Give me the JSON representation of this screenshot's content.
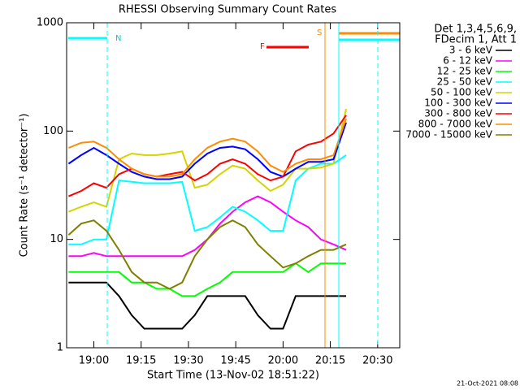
{
  "chart_data": {
    "type": "line",
    "title": "RHESSI Observing Summary Count Rates",
    "x_label": "Start Time (13-Nov-02 18:51:22)",
    "y_label": "Count Rate (s⁻¹ detector⁻¹)",
    "legend_title": [
      "Det 1,3,4,5,6,9,",
      "FDecim 1, Att 1"
    ],
    "footer": "21-Oct-2021 08:08",
    "annotations": [
      "N",
      "F",
      "S"
    ],
    "log_y": true,
    "legend_position": "right",
    "xlim": [
      1131.37,
      1237
    ],
    "ylim": [
      1,
      1000
    ],
    "xticks": [
      {
        "value": 1140,
        "label": "19:00"
      },
      {
        "value": 1155,
        "label": "19:15"
      },
      {
        "value": 1170,
        "label": "19:30"
      },
      {
        "value": 1185,
        "label": "19:45"
      },
      {
        "value": 1200,
        "label": "20:00"
      },
      {
        "value": 1215,
        "label": "20:15"
      },
      {
        "value": 1230,
        "label": "20:30"
      }
    ],
    "yticks": [
      1,
      10,
      100,
      1000
    ],
    "x": [
      1132,
      1136,
      1140,
      1144,
      1148,
      1152,
      1156,
      1160,
      1164,
      1168,
      1172,
      1176,
      1180,
      1184,
      1188,
      1192,
      1196,
      1200,
      1204,
      1208,
      1212,
      1216,
      1220
    ],
    "series": [
      {
        "name": "3 - 6 keV",
        "color": "#000000",
        "values": [
          4,
          4,
          4,
          4,
          3,
          2,
          1.5,
          1.5,
          1.5,
          1.5,
          2,
          3,
          3,
          3,
          3,
          2,
          1.5,
          1.5,
          3,
          3,
          3,
          3,
          3
        ]
      },
      {
        "name": "6 - 12 keV",
        "color": "#ff00ff",
        "values": [
          7,
          7,
          7.5,
          7,
          7,
          7,
          7,
          7,
          7,
          7,
          8,
          10,
          14,
          18,
          22,
          25,
          22,
          18,
          15,
          13,
          10,
          9,
          8
        ]
      },
      {
        "name": "12 - 25 keV",
        "color": "#00ff00",
        "values": [
          5,
          5,
          5,
          5,
          5,
          4,
          4,
          3.5,
          3.5,
          3,
          3,
          3.5,
          4,
          5,
          5,
          5,
          5,
          5,
          6,
          5,
          6,
          6,
          6
        ]
      },
      {
        "name": "25 - 50 keV",
        "color": "#00ffff",
        "values": [
          9,
          9,
          10,
          10,
          35,
          34,
          33,
          33,
          33,
          34,
          12,
          13,
          16,
          20,
          18,
          15,
          12,
          12,
          35,
          45,
          50,
          50,
          60
        ]
      },
      {
        "name": "50 - 100 keV",
        "color": "#d4d400",
        "values": [
          18,
          20,
          22,
          20,
          55,
          62,
          60,
          60,
          62,
          65,
          30,
          32,
          40,
          48,
          45,
          35,
          28,
          32,
          45,
          45,
          46,
          50,
          160
        ]
      },
      {
        "name": "100 - 300 keV",
        "color": "#0000ff",
        "values": [
          50,
          60,
          70,
          60,
          50,
          42,
          38,
          36,
          36,
          38,
          50,
          62,
          70,
          72,
          68,
          55,
          42,
          38,
          45,
          52,
          52,
          55,
          120
        ]
      },
      {
        "name": "300 - 800 keV",
        "color": "#ff0000",
        "values": [
          25,
          28,
          33,
          30,
          40,
          45,
          40,
          38,
          40,
          42,
          35,
          40,
          50,
          55,
          50,
          40,
          35,
          38,
          65,
          75,
          80,
          95,
          140
        ]
      },
      {
        "name": "800 - 7000 keV",
        "color": "#ff8c00",
        "values": [
          70,
          78,
          80,
          70,
          55,
          45,
          40,
          38,
          38,
          40,
          55,
          70,
          80,
          85,
          80,
          65,
          48,
          42,
          50,
          55,
          55,
          60,
          130
        ]
      },
      {
        "name": "7000 - 15000 keV",
        "color": "#808000",
        "values": [
          11,
          14,
          15,
          12,
          8,
          5,
          4,
          4,
          3.5,
          4,
          7,
          10,
          13,
          15,
          13,
          9,
          7,
          5.5,
          6,
          7,
          8,
          8,
          9
        ]
      }
    ]
  }
}
